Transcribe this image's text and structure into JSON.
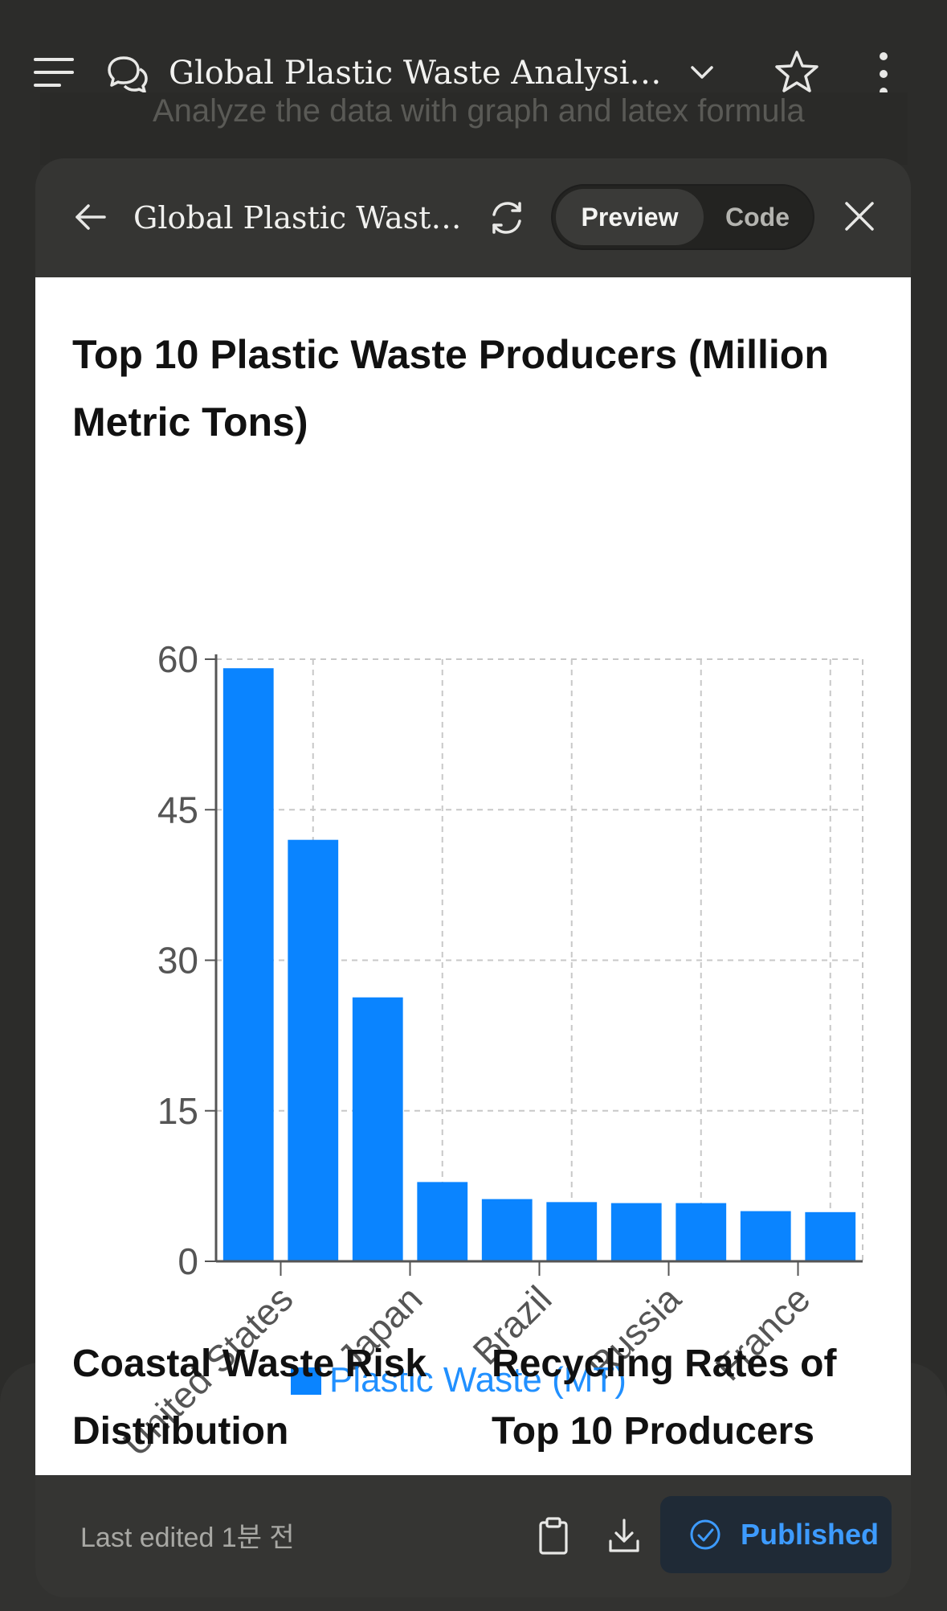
{
  "topbar": {
    "conversation_title": "Global Plastic Waste Analysis: P..."
  },
  "background_message": {
    "text": "Analyze the data with graph and latex formula"
  },
  "artifact": {
    "title": "Global Plastic Waste ...",
    "tabs": {
      "preview": "Preview",
      "code": "Code"
    },
    "active_tab": "Preview",
    "footer": {
      "last_edited": "Last edited 1분 전",
      "published_label": "Published"
    }
  },
  "colors": {
    "accent": "#0a84ff",
    "published_text": "#3d9bff",
    "page_bg": "#2c2c2a",
    "panel_bg": "#353533"
  },
  "icons": {
    "topbar": [
      "menu-icon",
      "chat-icon",
      "chevron-down-icon",
      "star-icon",
      "more-vertical-icon"
    ],
    "artifact_header": [
      "back-arrow-icon",
      "refresh-icon",
      "close-icon"
    ],
    "artifact_footer": [
      "clipboard-icon",
      "download-icon",
      "check-circle-icon"
    ]
  },
  "chart_data": {
    "type": "bar",
    "title": "Top 10 Plastic Waste Producers (Million Metric Tons)",
    "categories": [
      "",
      "United States",
      "",
      "Japan",
      "",
      "Brazil",
      "",
      "Russia",
      "",
      "France"
    ],
    "series": [
      {
        "name": "Plastic Waste (MT)",
        "values": [
          59.1,
          42.0,
          26.3,
          7.9,
          6.2,
          5.9,
          5.8,
          5.8,
          5.0,
          4.9
        ]
      }
    ],
    "xlabel": "",
    "ylabel": "",
    "ylim": [
      0,
      60
    ],
    "yticks": [
      "0",
      "15",
      "30",
      "45",
      "60"
    ],
    "grid": true,
    "legend": "bottom"
  },
  "sections": {
    "left_title": "Coastal Waste Risk Distribution",
    "right_title": "Recycling Rates of Top 10 Producers"
  }
}
